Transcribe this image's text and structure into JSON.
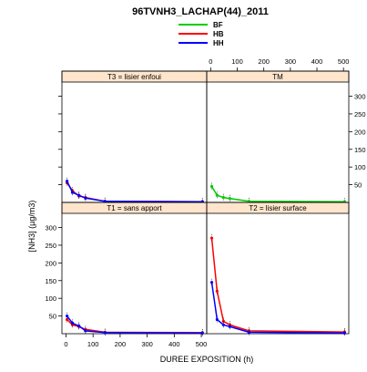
{
  "chart_data": {
    "type": "line",
    "title": "96TVNH3_LACHAP(44)_2011",
    "xlabel": "DUREE EXPOSITION (h)",
    "ylabel": "[NH3] (µg/m3)",
    "xlim": [
      -15,
      520
    ],
    "ylim": [
      0,
      340
    ],
    "x_ticks": [
      0,
      100,
      200,
      300,
      400,
      500
    ],
    "y_ticks": [
      50,
      100,
      150,
      200,
      250,
      300
    ],
    "grid": false,
    "legend_placement": "top",
    "legend": [
      {
        "name": "BF",
        "color": "#00cc00"
      },
      {
        "name": "HB",
        "color": "#ff0000"
      },
      {
        "name": "HH",
        "color": "#0000ff"
      }
    ],
    "panels": [
      {
        "label": "T3 = lisier enfoui",
        "series": [
          {
            "name": "HB",
            "x": [
              4,
              24,
              48,
              72,
              144,
              504
            ],
            "y": [
              55,
              33,
              18,
              14,
              3,
              2
            ]
          },
          {
            "name": "HH",
            "x": [
              4,
              24,
              48,
              72,
              144,
              504
            ],
            "y": [
              60,
              28,
              20,
              12,
              3,
              2
            ]
          }
        ]
      },
      {
        "label": "TM",
        "series": [
          {
            "name": "BF",
            "x": [
              4,
              24,
              48,
              72,
              144,
              504
            ],
            "y": [
              45,
              20,
              14,
              11,
              3,
              2
            ]
          }
        ]
      },
      {
        "label": "T1 = sans apport",
        "series": [
          {
            "name": "HB",
            "x": [
              4,
              24,
              48,
              72,
              144,
              504
            ],
            "y": [
              40,
              25,
              20,
              12,
              4,
              3
            ]
          },
          {
            "name": "HH",
            "x": [
              4,
              24,
              48,
              72,
              144,
              504
            ],
            "y": [
              50,
              30,
              22,
              8,
              3,
              2
            ]
          }
        ]
      },
      {
        "label": "T2 = lisier surface",
        "series": [
          {
            "name": "HB",
            "x": [
              4,
              24,
              48,
              72,
              144,
              504
            ],
            "y": [
              270,
              120,
              35,
              25,
              8,
              5
            ]
          },
          {
            "name": "HH",
            "x": [
              4,
              24,
              48,
              72,
              144,
              504
            ],
            "y": [
              145,
              40,
              25,
              20,
              4,
              2
            ]
          }
        ]
      }
    ]
  }
}
